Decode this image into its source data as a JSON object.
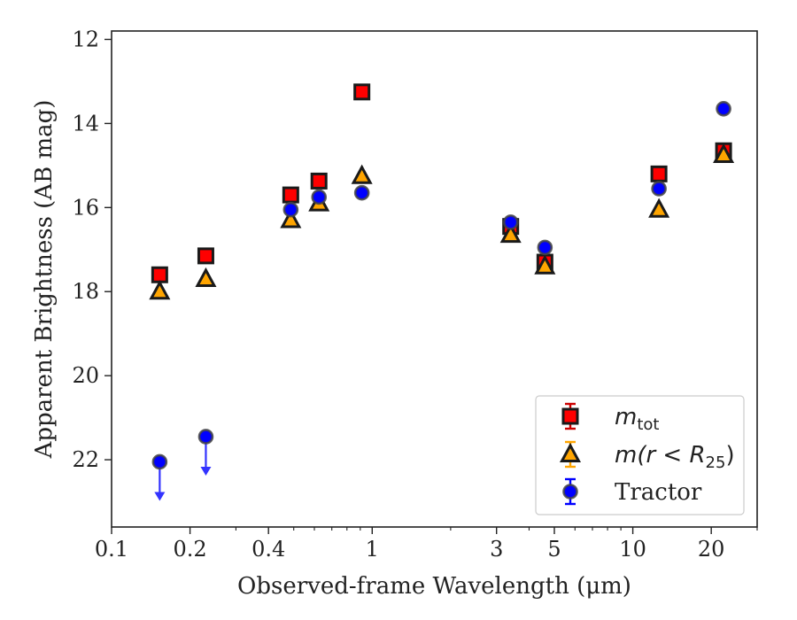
{
  "chart_data": {
    "type": "scatter",
    "xlabel": "Observed-frame Wavelength (μm)",
    "ylabel": "Apparent Brightness (AB mag)",
    "x_scale": "log",
    "xlim": [
      0.1,
      30
    ],
    "ylim": [
      23.6,
      11.8
    ],
    "y_inverted": true,
    "x_ticks": [
      {
        "value": 0.1,
        "label": "0.1"
      },
      {
        "value": 0.2,
        "label": "0.2"
      },
      {
        "value": 0.4,
        "label": "0.4"
      },
      {
        "value": 1,
        "label": "1"
      },
      {
        "value": 3,
        "label": "3"
      },
      {
        "value": 5,
        "label": "5"
      },
      {
        "value": 10,
        "label": "10"
      },
      {
        "value": 20,
        "label": "20"
      }
    ],
    "y_ticks": [
      {
        "value": 12,
        "label": "12"
      },
      {
        "value": 14,
        "label": "14"
      },
      {
        "value": 16,
        "label": "16"
      },
      {
        "value": 18,
        "label": "18"
      },
      {
        "value": 20,
        "label": "20"
      },
      {
        "value": 22,
        "label": "22"
      }
    ],
    "grid": false,
    "legend_position": "bottom-right",
    "series": [
      {
        "name": "m_tot",
        "marker": "square",
        "fill": "#ff0000",
        "edge": "#1a1a1a",
        "errcolor": "#cc0000",
        "points": [
          {
            "x": 0.153,
            "y": 17.6
          },
          {
            "x": 0.23,
            "y": 17.15
          },
          {
            "x": 0.487,
            "y": 15.7
          },
          {
            "x": 0.625,
            "y": 15.37
          },
          {
            "x": 0.913,
            "y": 13.25
          },
          {
            "x": 3.4,
            "y": 16.45
          },
          {
            "x": 4.6,
            "y": 17.3
          },
          {
            "x": 12.6,
            "y": 15.2
          },
          {
            "x": 22.3,
            "y": 14.65
          }
        ]
      },
      {
        "name": "m(r < R25)",
        "marker": "triangle",
        "fill": "#ffa500",
        "edge": "#1a1a1a",
        "errcolor": "#ffa500",
        "points": [
          {
            "x": 0.153,
            "y": 18.0
          },
          {
            "x": 0.23,
            "y": 17.7
          },
          {
            "x": 0.487,
            "y": 16.3
          },
          {
            "x": 0.625,
            "y": 15.9
          },
          {
            "x": 0.913,
            "y": 15.25
          },
          {
            "x": 3.4,
            "y": 16.65
          },
          {
            "x": 4.6,
            "y": 17.4
          },
          {
            "x": 12.6,
            "y": 16.05
          },
          {
            "x": 22.3,
            "y": 14.75
          }
        ]
      },
      {
        "name": "Tractor",
        "marker": "circle",
        "fill": "#0000ff",
        "edge": "#444444",
        "errcolor": "#0000ff",
        "points": [
          {
            "x": 0.153,
            "y": 22.05,
            "upper_limit": true
          },
          {
            "x": 0.23,
            "y": 21.45,
            "upper_limit": true
          },
          {
            "x": 0.487,
            "y": 16.05
          },
          {
            "x": 0.625,
            "y": 15.75
          },
          {
            "x": 0.913,
            "y": 15.65
          },
          {
            "x": 3.4,
            "y": 16.35
          },
          {
            "x": 4.6,
            "y": 16.95
          },
          {
            "x": 12.6,
            "y": 15.55
          },
          {
            "x": 22.3,
            "y": 13.65
          }
        ]
      }
    ],
    "legend": [
      {
        "marker": "square",
        "label_sym": "m",
        "label_sub": "tot"
      },
      {
        "marker": "triangle",
        "label_pre": "m(r < R",
        "label_sub": "25",
        "label_post": ")"
      },
      {
        "marker": "circle",
        "label": "Tractor"
      }
    ]
  }
}
